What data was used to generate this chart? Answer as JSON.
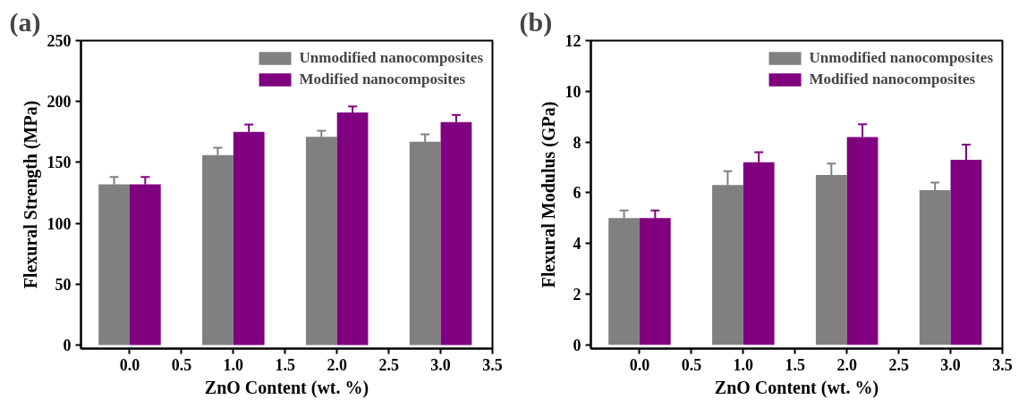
{
  "chart_data": [
    {
      "type": "bar",
      "title": "(a)",
      "xlabel": "ZnO Content (wt. %)",
      "ylabel": "Flexural Strength (MPa)",
      "x": [
        0,
        1,
        2,
        3
      ],
      "xlim": [
        -0.47,
        3.5
      ],
      "xticks": [
        {
          "value": 0,
          "label": "0.0"
        },
        {
          "value": 0.5,
          "label": "0.5"
        },
        {
          "value": 1,
          "label": "1.0"
        },
        {
          "value": 1.5,
          "label": "1.5"
        },
        {
          "value": 2,
          "label": "2.0"
        },
        {
          "value": 2.5,
          "label": "2.5"
        },
        {
          "value": 3,
          "label": "3.0"
        },
        {
          "value": 3.5,
          "label": "3.5"
        }
      ],
      "ylim": [
        -3,
        250
      ],
      "yticks": [
        0,
        50,
        100,
        150,
        200,
        250
      ],
      "grid": false,
      "legend": "top right",
      "series": [
        {
          "name": "Unmodified nanocomposites",
          "color": "#808080",
          "values": [
            132,
            156,
            171,
            167
          ],
          "errors": [
            [
              132,
              138
            ],
            [
              156,
              162
            ],
            [
              171,
              176
            ],
            [
              167,
              173
            ]
          ]
        },
        {
          "name": "Modified nanocomposites",
          "color": "#800080",
          "values": [
            132,
            175,
            191,
            183
          ],
          "errors": [
            [
              132,
              138
            ],
            [
              175,
              181
            ],
            [
              191,
              196
            ],
            [
              183,
              189
            ]
          ]
        }
      ]
    },
    {
      "type": "bar",
      "title": "(b)",
      "xlabel": "ZnO Content (wt. %)",
      "ylabel": "Flexural Modulus (GPa)",
      "x": [
        0,
        1,
        2,
        3
      ],
      "xlim": [
        -0.47,
        3.5
      ],
      "xticks": [
        {
          "value": 0,
          "label": "0.0"
        },
        {
          "value": 0.5,
          "label": "0.5"
        },
        {
          "value": 1,
          "label": "1.0"
        },
        {
          "value": 1.5,
          "label": "1.5"
        },
        {
          "value": 2,
          "label": "2.0"
        },
        {
          "value": 2.5,
          "label": "2.5"
        },
        {
          "value": 3,
          "label": "3.0"
        },
        {
          "value": 3.5,
          "label": "3.5"
        }
      ],
      "ylim": [
        -0.15,
        12
      ],
      "yticks": [
        0,
        2,
        4,
        6,
        8,
        10,
        12
      ],
      "grid": false,
      "legend": "top right",
      "series": [
        {
          "name": "Unmodified nanocomposites",
          "color": "#808080",
          "values": [
            5.0,
            6.3,
            6.7,
            6.1
          ],
          "errors": [
            [
              5.0,
              5.3
            ],
            [
              6.3,
              6.85
            ],
            [
              6.7,
              7.15
            ],
            [
              6.1,
              6.4
            ]
          ]
        },
        {
          "name": "Modified nanocomposites",
          "color": "#800080",
          "values": [
            5.0,
            7.2,
            8.2,
            7.3
          ],
          "errors": [
            [
              5.0,
              5.3
            ],
            [
              7.2,
              7.6
            ],
            [
              8.2,
              8.7
            ],
            [
              7.3,
              7.9
            ]
          ]
        }
      ]
    }
  ]
}
